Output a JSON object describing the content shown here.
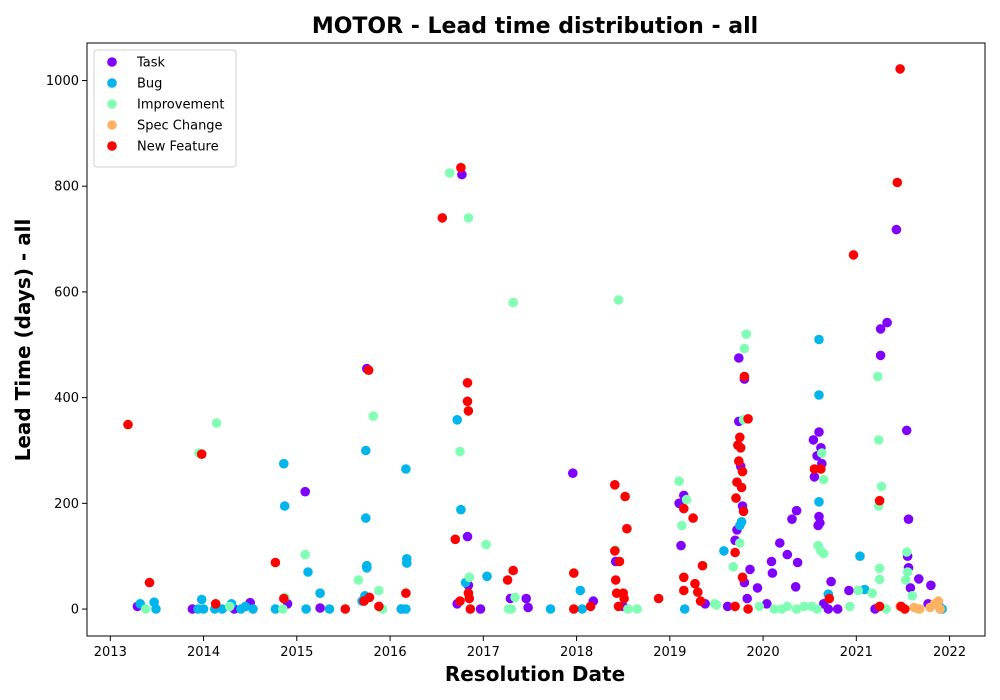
{
  "chart_data": {
    "type": "scatter",
    "title": "MOTOR - Lead time distribution - all",
    "xlabel": "Resolution Date",
    "ylabel": "Lead Time (days) - all",
    "x_ticks": [
      "2013",
      "2014",
      "2015",
      "2016",
      "2017",
      "2018",
      "2019",
      "2020",
      "2021",
      "2022"
    ],
    "y_ticks": [
      0,
      200,
      400,
      600,
      800,
      1000
    ],
    "xlim": [
      2012.75,
      2022.38
    ],
    "ylim": [
      -51,
      1071
    ],
    "grid": false,
    "legend_position": "top-left",
    "series": [
      {
        "name": "Task",
        "color": "#8000ff",
        "points": [
          [
            2013.29,
            5
          ],
          [
            2013.88,
            0
          ],
          [
            2014.33,
            0
          ],
          [
            2014.5,
            12
          ],
          [
            2014.9,
            10
          ],
          [
            2015.09,
            222
          ],
          [
            2015.25,
            2
          ],
          [
            2015.75,
            455
          ],
          [
            2016.12,
            0
          ],
          [
            2016.72,
            10
          ],
          [
            2016.77,
            822
          ],
          [
            2016.83,
            137
          ],
          [
            2016.84,
            45
          ],
          [
            2016.97,
            0
          ],
          [
            2017.29,
            20
          ],
          [
            2017.46,
            20
          ],
          [
            2017.48,
            3
          ],
          [
            2017.96,
            257
          ],
          [
            2018.18,
            15
          ],
          [
            2018.42,
            90
          ],
          [
            2018.5,
            5
          ],
          [
            2019.1,
            200
          ],
          [
            2019.12,
            120
          ],
          [
            2019.15,
            215
          ],
          [
            2019.38,
            10
          ],
          [
            2019.62,
            5
          ],
          [
            2019.7,
            130
          ],
          [
            2019.72,
            150
          ],
          [
            2019.74,
            355
          ],
          [
            2019.74,
            475
          ],
          [
            2019.76,
            270
          ],
          [
            2019.78,
            195
          ],
          [
            2019.8,
            435
          ],
          [
            2019.8,
            50
          ],
          [
            2019.83,
            20
          ],
          [
            2019.86,
            75
          ],
          [
            2019.94,
            40
          ],
          [
            2020.04,
            10
          ],
          [
            2020.09,
            90
          ],
          [
            2020.1,
            68
          ],
          [
            2020.18,
            125
          ],
          [
            2020.26,
            103
          ],
          [
            2020.31,
            170
          ],
          [
            2020.35,
            42
          ],
          [
            2020.36,
            186
          ],
          [
            2020.37,
            88
          ],
          [
            2020.54,
            320
          ],
          [
            2020.55,
            250
          ],
          [
            2020.58,
            290
          ],
          [
            2020.59,
            158
          ],
          [
            2020.6,
            335
          ],
          [
            2020.6,
            175
          ],
          [
            2020.61,
            163
          ],
          [
            2020.62,
            305
          ],
          [
            2020.63,
            275
          ],
          [
            2020.65,
            10
          ],
          [
            2020.7,
            0
          ],
          [
            2020.73,
            52
          ],
          [
            2020.8,
            0
          ],
          [
            2020.92,
            35
          ],
          [
            2021.2,
            0
          ],
          [
            2021.26,
            530
          ],
          [
            2021.26,
            480
          ],
          [
            2021.33,
            542
          ],
          [
            2021.43,
            718
          ],
          [
            2021.54,
            338
          ],
          [
            2021.55,
            100
          ],
          [
            2021.56,
            170
          ],
          [
            2021.56,
            78
          ],
          [
            2021.58,
            40
          ],
          [
            2021.67,
            57
          ],
          [
            2021.77,
            10
          ],
          [
            2021.8,
            45
          ],
          [
            2021.9,
            0
          ]
        ]
      },
      {
        "name": "Bug",
        "color": "#00b5eb",
        "points": [
          [
            2013.32,
            10
          ],
          [
            2013.47,
            13
          ],
          [
            2013.49,
            0
          ],
          [
            2013.94,
            0
          ],
          [
            2013.98,
            18
          ],
          [
            2014.0,
            0
          ],
          [
            2014.12,
            0
          ],
          [
            2014.2,
            0
          ],
          [
            2014.3,
            10
          ],
          [
            2014.4,
            0
          ],
          [
            2014.45,
            5
          ],
          [
            2014.53,
            0
          ],
          [
            2014.77,
            0
          ],
          [
            2014.86,
            275
          ],
          [
            2014.87,
            195
          ],
          [
            2015.1,
            0
          ],
          [
            2015.12,
            70
          ],
          [
            2015.25,
            30
          ],
          [
            2015.35,
            0
          ],
          [
            2015.7,
            15
          ],
          [
            2015.73,
            25
          ],
          [
            2015.74,
            300
          ],
          [
            2015.74,
            172
          ],
          [
            2015.75,
            82
          ],
          [
            2015.75,
            78
          ],
          [
            2016.12,
            0
          ],
          [
            2016.17,
            0
          ],
          [
            2016.17,
            265
          ],
          [
            2016.18,
            95
          ],
          [
            2016.18,
            87
          ],
          [
            2016.72,
            358
          ],
          [
            2016.76,
            188
          ],
          [
            2016.81,
            50
          ],
          [
            2017.04,
            62
          ],
          [
            2017.72,
            0
          ],
          [
            2018.04,
            35
          ],
          [
            2018.06,
            0
          ],
          [
            2019.16,
            0
          ],
          [
            2019.58,
            110
          ],
          [
            2019.75,
            158
          ],
          [
            2019.77,
            165
          ],
          [
            2020.6,
            510
          ],
          [
            2020.6,
            405
          ],
          [
            2020.6,
            203
          ],
          [
            2020.7,
            28
          ],
          [
            2021.04,
            100
          ],
          [
            2021.09,
            37
          ],
          [
            2021.89,
            5
          ],
          [
            2021.92,
            0
          ]
        ]
      },
      {
        "name": "Improvement",
        "color": "#80ffb4",
        "points": [
          [
            2013.38,
            0
          ],
          [
            2013.95,
            295
          ],
          [
            2014.14,
            352
          ],
          [
            2014.28,
            5
          ],
          [
            2014.85,
            0
          ],
          [
            2014.87,
            22
          ],
          [
            2015.09,
            103
          ],
          [
            2015.66,
            55
          ],
          [
            2015.82,
            365
          ],
          [
            2015.88,
            35
          ],
          [
            2015.92,
            0
          ],
          [
            2016.64,
            825
          ],
          [
            2016.75,
            298
          ],
          [
            2016.84,
            740
          ],
          [
            2016.85,
            60
          ],
          [
            2017.03,
            122
          ],
          [
            2017.27,
            0
          ],
          [
            2017.3,
            0
          ],
          [
            2017.32,
            580
          ],
          [
            2017.34,
            22
          ],
          [
            2018.42,
            112
          ],
          [
            2018.45,
            585
          ],
          [
            2018.55,
            0
          ],
          [
            2018.65,
            0
          ],
          [
            2019.1,
            242
          ],
          [
            2019.13,
            158
          ],
          [
            2019.18,
            207
          ],
          [
            2019.48,
            10
          ],
          [
            2019.5,
            8
          ],
          [
            2019.68,
            80
          ],
          [
            2019.75,
            125
          ],
          [
            2019.79,
            358
          ],
          [
            2019.8,
            493
          ],
          [
            2019.82,
            520
          ],
          [
            2019.96,
            5
          ],
          [
            2020.12,
            0
          ],
          [
            2020.2,
            0
          ],
          [
            2020.26,
            5
          ],
          [
            2020.36,
            0
          ],
          [
            2020.44,
            5
          ],
          [
            2020.52,
            5
          ],
          [
            2020.58,
            0
          ],
          [
            2020.59,
            120
          ],
          [
            2020.62,
            110
          ],
          [
            2020.63,
            295
          ],
          [
            2020.65,
            105
          ],
          [
            2020.65,
            245
          ],
          [
            2020.93,
            5
          ],
          [
            2021.02,
            35
          ],
          [
            2021.17,
            30
          ],
          [
            2021.23,
            440
          ],
          [
            2021.24,
            320
          ],
          [
            2021.24,
            195
          ],
          [
            2021.25,
            77
          ],
          [
            2021.25,
            56
          ],
          [
            2021.27,
            232
          ],
          [
            2021.32,
            0
          ],
          [
            2021.53,
            55
          ],
          [
            2021.54,
            108
          ],
          [
            2021.55,
            70
          ],
          [
            2021.6,
            25
          ],
          [
            2021.66,
            0
          ]
        ]
      },
      {
        "name": "Spec Change",
        "color": "#ffb360",
        "points": [
          [
            2021.47,
            5
          ],
          [
            2021.62,
            3
          ],
          [
            2021.68,
            0
          ],
          [
            2021.79,
            3
          ],
          [
            2021.84,
            10
          ],
          [
            2021.88,
            15
          ],
          [
            2021.9,
            0
          ]
        ]
      },
      {
        "name": "New Feature",
        "color": "#ff0000",
        "points": [
          [
            2013.19,
            349
          ],
          [
            2013.42,
            50
          ],
          [
            2013.98,
            293
          ],
          [
            2014.13,
            10
          ],
          [
            2014.77,
            88
          ],
          [
            2014.86,
            20
          ],
          [
            2015.52,
            0
          ],
          [
            2015.72,
            15
          ],
          [
            2015.77,
            452
          ],
          [
            2015.78,
            22
          ],
          [
            2015.88,
            5
          ],
          [
            2016.17,
            30
          ],
          [
            2016.56,
            740
          ],
          [
            2016.7,
            132
          ],
          [
            2016.75,
            15
          ],
          [
            2016.76,
            835
          ],
          [
            2016.83,
            428
          ],
          [
            2016.83,
            393
          ],
          [
            2016.84,
            375
          ],
          [
            2016.84,
            30
          ],
          [
            2016.85,
            20
          ],
          [
            2016.86,
            0
          ],
          [
            2017.26,
            55
          ],
          [
            2017.32,
            73
          ],
          [
            2017.97,
            68
          ],
          [
            2017.97,
            0
          ],
          [
            2018.15,
            5
          ],
          [
            2018.41,
            235
          ],
          [
            2018.41,
            110
          ],
          [
            2018.42,
            55
          ],
          [
            2018.43,
            30
          ],
          [
            2018.45,
            5
          ],
          [
            2018.46,
            90
          ],
          [
            2018.5,
            30
          ],
          [
            2018.51,
            20
          ],
          [
            2018.52,
            213
          ],
          [
            2018.54,
            152
          ],
          [
            2018.88,
            20
          ],
          [
            2019.15,
            190
          ],
          [
            2019.15,
            60
          ],
          [
            2019.15,
            35
          ],
          [
            2019.25,
            172
          ],
          [
            2019.27,
            48
          ],
          [
            2019.3,
            32
          ],
          [
            2019.33,
            15
          ],
          [
            2019.35,
            82
          ],
          [
            2019.7,
            107
          ],
          [
            2019.71,
            210
          ],
          [
            2019.72,
            240
          ],
          [
            2019.73,
            310
          ],
          [
            2019.74,
            280
          ],
          [
            2019.75,
            325
          ],
          [
            2019.76,
            305
          ],
          [
            2019.77,
            230
          ],
          [
            2019.78,
            260
          ],
          [
            2019.8,
            440
          ],
          [
            2019.79,
            185
          ],
          [
            2019.78,
            60
          ],
          [
            2019.84,
            360
          ],
          [
            2019.7,
            5
          ],
          [
            2019.84,
            0
          ],
          [
            2020.55,
            265
          ],
          [
            2020.62,
            265
          ],
          [
            2020.71,
            20
          ],
          [
            2020.97,
            670
          ],
          [
            2021.25,
            205
          ],
          [
            2021.25,
            5
          ],
          [
            2021.44,
            807
          ],
          [
            2021.47,
            1022
          ],
          [
            2021.48,
            5
          ],
          [
            2021.52,
            0
          ]
        ]
      }
    ]
  }
}
